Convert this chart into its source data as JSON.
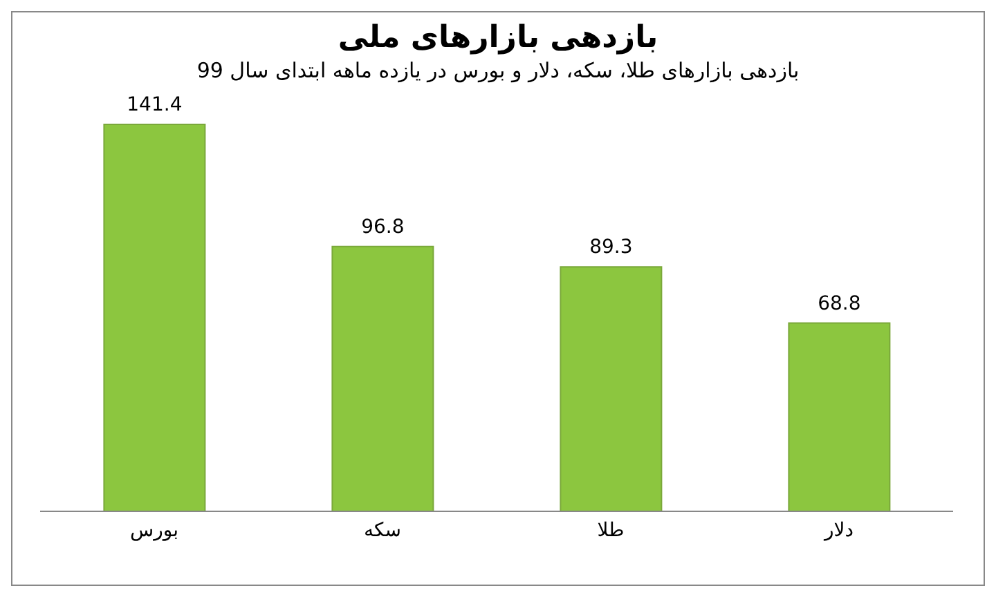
{
  "chart_data": {
    "type": "bar",
    "title": "بازدهی بازارهای ملی",
    "subtitle": "بازدهی بازارهای طلا، سکه، دلار و بورس در یازده ماهه ابتدای سال 99",
    "categories": [
      "بورس",
      "سکه",
      "طلا",
      "دلار"
    ],
    "values": [
      141.4,
      96.8,
      89.3,
      68.8
    ],
    "color": "#8cc63f",
    "data_labels": true
  }
}
